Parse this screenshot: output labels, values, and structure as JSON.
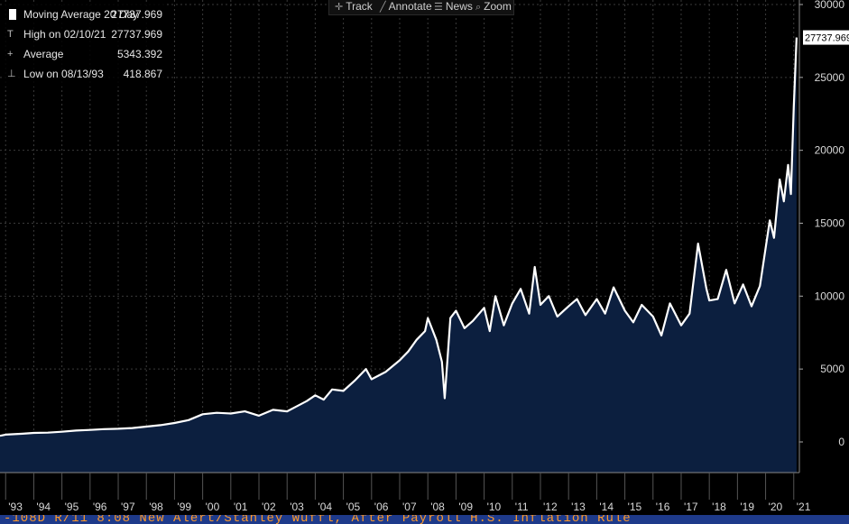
{
  "chart_data": {
    "type": "area",
    "series": [
      {
        "name": "Moving Average 20 Day",
        "x": [
          1992.8,
          1993.0,
          1993.6,
          1994.0,
          1994.5,
          1995.0,
          1995.5,
          1996.0,
          1996.5,
          1997.0,
          1997.5,
          1998.0,
          1998.5,
          1999.0,
          1999.5,
          2000.0,
          2000.5,
          2001.0,
          2001.5,
          2002.0,
          2002.5,
          2003.0,
          2003.3,
          2003.7,
          2004.0,
          2004.3,
          2004.6,
          2005.0,
          2005.4,
          2005.8,
          2006.0,
          2006.5,
          2007.0,
          2007.3,
          2007.6,
          2007.9,
          2008.0,
          2008.3,
          2008.5,
          2008.6,
          2008.8,
          2009.0,
          2009.3,
          2009.6,
          2010.0,
          2010.2,
          2010.4,
          2010.7,
          2011.0,
          2011.3,
          2011.6,
          2011.8,
          2012.0,
          2012.3,
          2012.6,
          2013.0,
          2013.3,
          2013.6,
          2014.0,
          2014.3,
          2014.6,
          2015.0,
          2015.3,
          2015.6,
          2016.0,
          2016.3,
          2016.6,
          2017.0,
          2017.3,
          2017.6,
          2017.9,
          2018.0,
          2018.3,
          2018.6,
          2018.9,
          2019.2,
          2019.5,
          2019.8,
          2020.0,
          2020.15,
          2020.3,
          2020.5,
          2020.65,
          2020.8,
          2020.9,
          2021.0,
          2021.1
        ],
        "values": [
          420,
          500,
          560,
          620,
          640,
          700,
          780,
          820,
          880,
          900,
          950,
          1050,
          1150,
          1300,
          1500,
          1900,
          2000,
          1950,
          2100,
          1800,
          2200,
          2100,
          2400,
          2800,
          3200,
          2900,
          3600,
          3500,
          4200,
          5000,
          4300,
          4800,
          5600,
          6200,
          7000,
          7600,
          8500,
          7000,
          5500,
          3000,
          8500,
          9000,
          7800,
          8300,
          9200,
          7600,
          10000,
          8000,
          9500,
          10500,
          8800,
          12000,
          9400,
          10000,
          8600,
          9300,
          9800,
          8700,
          9800,
          8800,
          10600,
          9000,
          8200,
          9400,
          8600,
          7300,
          9500,
          8000,
          8800,
          13600,
          10500,
          9700,
          9800,
          11800,
          9500,
          10800,
          9300,
          10700,
          13300,
          15200,
          14000,
          18000,
          16500,
          19000,
          17000,
          23000,
          27737.969
        ]
      }
    ],
    "ylim": [
      -2000,
      30000
    ],
    "xlim": [
      1992.8,
      2021.2
    ],
    "yticks": [
      "30000",
      "25000",
      "20000",
      "15000",
      "10000",
      "5000",
      "0"
    ],
    "xticks": [
      "'93",
      "'94",
      "'95",
      "'96",
      "'97",
      "'98",
      "'99",
      "'00",
      "'01",
      "'02",
      "'03",
      "'04",
      "'05",
      "'06",
      "'07",
      "'08",
      "'09",
      "'10",
      "'11",
      "'12",
      "'13",
      "'14",
      "'15",
      "'16",
      "'17",
      "'18",
      "'19",
      "'20",
      "'21"
    ],
    "last_value_label": "27737.969",
    "grid": true,
    "colors": {
      "line": "#ffffff",
      "fill": "#0c1f3f",
      "grid": "#3a3a3a",
      "axis_text": "#d8d8d8",
      "last_label_bg": "#ffffff"
    }
  },
  "legend": {
    "rows": [
      {
        "icon": "",
        "label": "Moving Average 20 Day",
        "value": "27737.969"
      },
      {
        "icon": "T",
        "label": "High on 02/10/21",
        "value": "27737.969"
      },
      {
        "icon": "+",
        "label": "Average",
        "value": "5343.392"
      },
      {
        "icon": "⊥",
        "label": "Low on 08/13/93",
        "value": "418.867"
      }
    ]
  },
  "toolbar": {
    "track": "Track",
    "annotate": "Annotate",
    "news": "News",
    "zoom": "Zoom"
  },
  "ticker_text": "-108D R/11 8:08 New Alert/Stanley Wuffl, After Payroll H.S. Inflation Rule"
}
